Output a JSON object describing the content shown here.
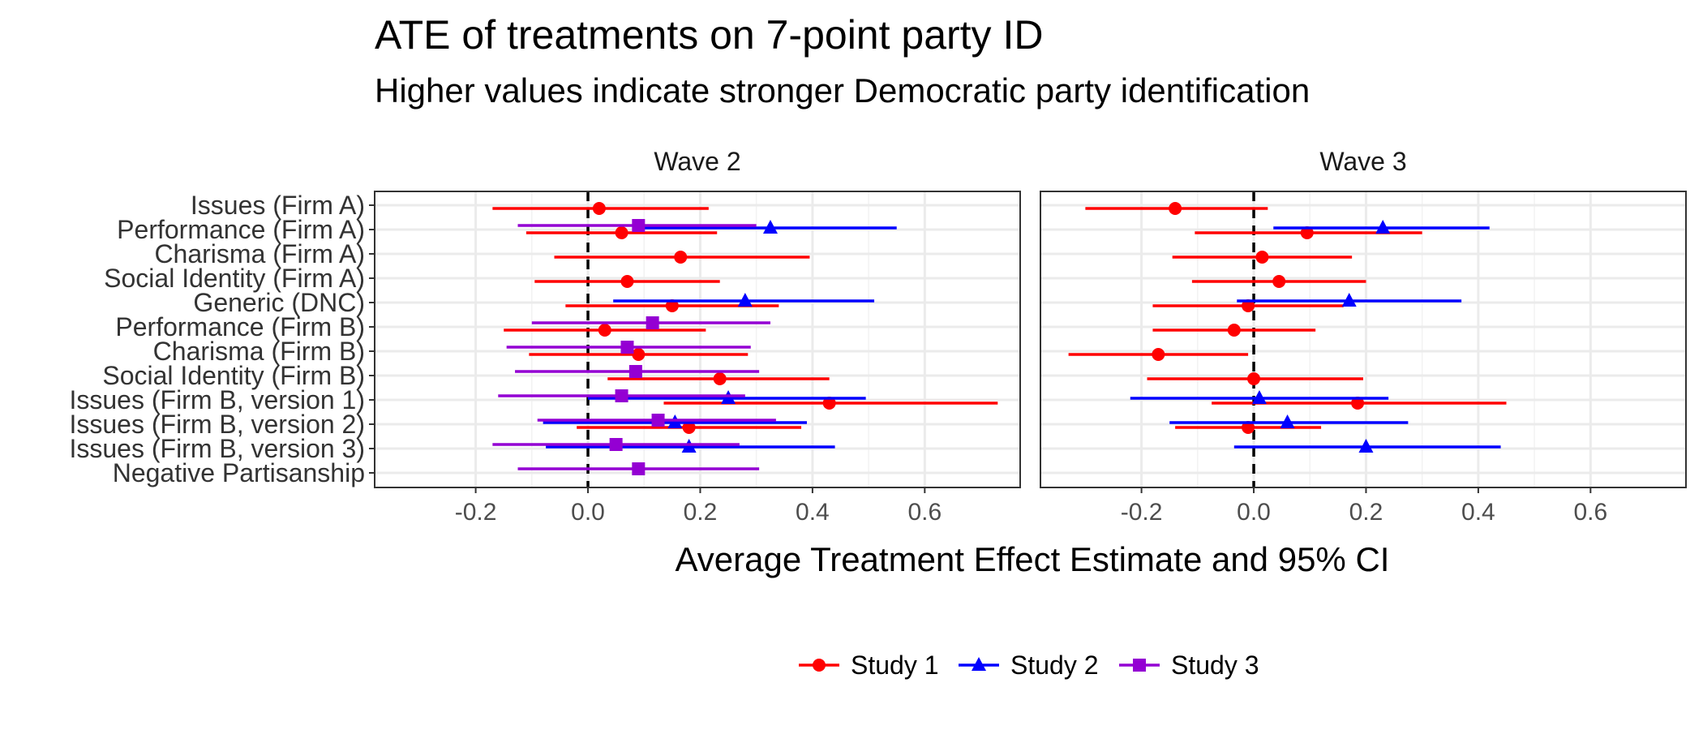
{
  "chart_data": {
    "type": "forest",
    "title": "ATE of treatments on 7-point party ID",
    "subtitle": "Higher values indicate stronger Democratic party identification",
    "xlabel": "Average Treatment Effect Estimate and 95% CI",
    "xlim": [
      -0.38,
      0.77
    ],
    "xticks": [
      "-0.2",
      "0.0",
      "0.2",
      "0.4",
      "0.6"
    ],
    "xtick_values": [
      -0.2,
      0.0,
      0.2,
      0.4,
      0.6
    ],
    "reference_line": 0,
    "grid": true,
    "legend_position": "bottom",
    "categories": [
      "Issues (Firm A)",
      "Performance (Firm A)",
      "Charisma (Firm A)",
      "Social Identity (Firm A)",
      "Generic (DNC)",
      "Performance (Firm B)",
      "Charisma (Firm B)",
      "Social Identity (Firm B)",
      "Issues (Firm B, version 1)",
      "Issues (Firm B, version 2)",
      "Issues (Firm B, version 3)",
      "Negative Partisanship"
    ],
    "series": [
      {
        "name": "Study 1",
        "color": "#ff0000",
        "marker": "circle"
      },
      {
        "name": "Study 2",
        "color": "#0000ff",
        "marker": "triangle"
      },
      {
        "name": "Study 3",
        "color": "#9400d3",
        "marker": "square"
      }
    ],
    "panels": [
      {
        "strip": "Wave 2",
        "points": [
          {
            "category": "Issues (Firm A)",
            "series": "Study 1",
            "estimate": 0.02,
            "lower": -0.17,
            "upper": 0.215
          },
          {
            "category": "Performance (Firm A)",
            "series": "Study 1",
            "estimate": 0.06,
            "lower": -0.11,
            "upper": 0.23
          },
          {
            "category": "Performance (Firm A)",
            "series": "Study 2",
            "estimate": 0.325,
            "lower": 0.1,
            "upper": 0.55
          },
          {
            "category": "Performance (Firm A)",
            "series": "Study 3",
            "estimate": 0.09,
            "lower": -0.125,
            "upper": 0.3
          },
          {
            "category": "Charisma (Firm A)",
            "series": "Study 1",
            "estimate": 0.165,
            "lower": -0.06,
            "upper": 0.395
          },
          {
            "category": "Social Identity (Firm A)",
            "series": "Study 1",
            "estimate": 0.07,
            "lower": -0.095,
            "upper": 0.235
          },
          {
            "category": "Generic (DNC)",
            "series": "Study 1",
            "estimate": 0.15,
            "lower": -0.04,
            "upper": 0.34
          },
          {
            "category": "Generic (DNC)",
            "series": "Study 2",
            "estimate": 0.28,
            "lower": 0.045,
            "upper": 0.51
          },
          {
            "category": "Performance (Firm B)",
            "series": "Study 1",
            "estimate": 0.03,
            "lower": -0.15,
            "upper": 0.21
          },
          {
            "category": "Performance (Firm B)",
            "series": "Study 3",
            "estimate": 0.115,
            "lower": -0.1,
            "upper": 0.325
          },
          {
            "category": "Charisma (Firm B)",
            "series": "Study 1",
            "estimate": 0.09,
            "lower": -0.105,
            "upper": 0.285
          },
          {
            "category": "Charisma (Firm B)",
            "series": "Study 3",
            "estimate": 0.07,
            "lower": -0.145,
            "upper": 0.29
          },
          {
            "category": "Social Identity (Firm B)",
            "series": "Study 1",
            "estimate": 0.235,
            "lower": 0.035,
            "upper": 0.43
          },
          {
            "category": "Social Identity (Firm B)",
            "series": "Study 3",
            "estimate": 0.085,
            "lower": -0.13,
            "upper": 0.305
          },
          {
            "category": "Issues (Firm B, version 1)",
            "series": "Study 1",
            "estimate": 0.43,
            "lower": 0.135,
            "upper": 0.73
          },
          {
            "category": "Issues (Firm B, version 1)",
            "series": "Study 2",
            "estimate": 0.25,
            "lower": 0.0,
            "upper": 0.495
          },
          {
            "category": "Issues (Firm B, version 1)",
            "series": "Study 3",
            "estimate": 0.06,
            "lower": -0.16,
            "upper": 0.28
          },
          {
            "category": "Issues (Firm B, version 2)",
            "series": "Study 1",
            "estimate": 0.18,
            "lower": -0.02,
            "upper": 0.38
          },
          {
            "category": "Issues (Firm B, version 2)",
            "series": "Study 2",
            "estimate": 0.155,
            "lower": -0.08,
            "upper": 0.39
          },
          {
            "category": "Issues (Firm B, version 2)",
            "series": "Study 3",
            "estimate": 0.125,
            "lower": -0.09,
            "upper": 0.335
          },
          {
            "category": "Issues (Firm B, version 3)",
            "series": "Study 2",
            "estimate": 0.18,
            "lower": -0.075,
            "upper": 0.44
          },
          {
            "category": "Issues (Firm B, version 3)",
            "series": "Study 3",
            "estimate": 0.05,
            "lower": -0.17,
            "upper": 0.27
          },
          {
            "category": "Negative Partisanship",
            "series": "Study 3",
            "estimate": 0.09,
            "lower": -0.125,
            "upper": 0.305
          }
        ]
      },
      {
        "strip": "Wave 3",
        "points": [
          {
            "category": "Issues (Firm A)",
            "series": "Study 1",
            "estimate": -0.14,
            "lower": -0.3,
            "upper": 0.025
          },
          {
            "category": "Performance (Firm A)",
            "series": "Study 1",
            "estimate": 0.095,
            "lower": -0.105,
            "upper": 0.3
          },
          {
            "category": "Performance (Firm A)",
            "series": "Study 2",
            "estimate": 0.23,
            "lower": 0.035,
            "upper": 0.42
          },
          {
            "category": "Charisma (Firm A)",
            "series": "Study 1",
            "estimate": 0.015,
            "lower": -0.145,
            "upper": 0.175
          },
          {
            "category": "Social Identity (Firm A)",
            "series": "Study 1",
            "estimate": 0.045,
            "lower": -0.11,
            "upper": 0.2
          },
          {
            "category": "Generic (DNC)",
            "series": "Study 1",
            "estimate": -0.01,
            "lower": -0.18,
            "upper": 0.16
          },
          {
            "category": "Generic (DNC)",
            "series": "Study 2",
            "estimate": 0.17,
            "lower": -0.03,
            "upper": 0.37
          },
          {
            "category": "Performance (Firm B)",
            "series": "Study 1",
            "estimate": -0.035,
            "lower": -0.18,
            "upper": 0.11
          },
          {
            "category": "Charisma (Firm B)",
            "series": "Study 1",
            "estimate": -0.17,
            "lower": -0.33,
            "upper": -0.01
          },
          {
            "category": "Social Identity (Firm B)",
            "series": "Study 1",
            "estimate": 0.0,
            "lower": -0.19,
            "upper": 0.195
          },
          {
            "category": "Issues (Firm B, version 1)",
            "series": "Study 1",
            "estimate": 0.185,
            "lower": -0.075,
            "upper": 0.45
          },
          {
            "category": "Issues (Firm B, version 1)",
            "series": "Study 2",
            "estimate": 0.01,
            "lower": -0.22,
            "upper": 0.24
          },
          {
            "category": "Issues (Firm B, version 2)",
            "series": "Study 1",
            "estimate": -0.01,
            "lower": -0.14,
            "upper": 0.12
          },
          {
            "category": "Issues (Firm B, version 2)",
            "series": "Study 2",
            "estimate": 0.06,
            "lower": -0.15,
            "upper": 0.275
          },
          {
            "category": "Issues (Firm B, version 3)",
            "series": "Study 2",
            "estimate": 0.2,
            "lower": -0.035,
            "upper": 0.44
          }
        ]
      }
    ]
  }
}
